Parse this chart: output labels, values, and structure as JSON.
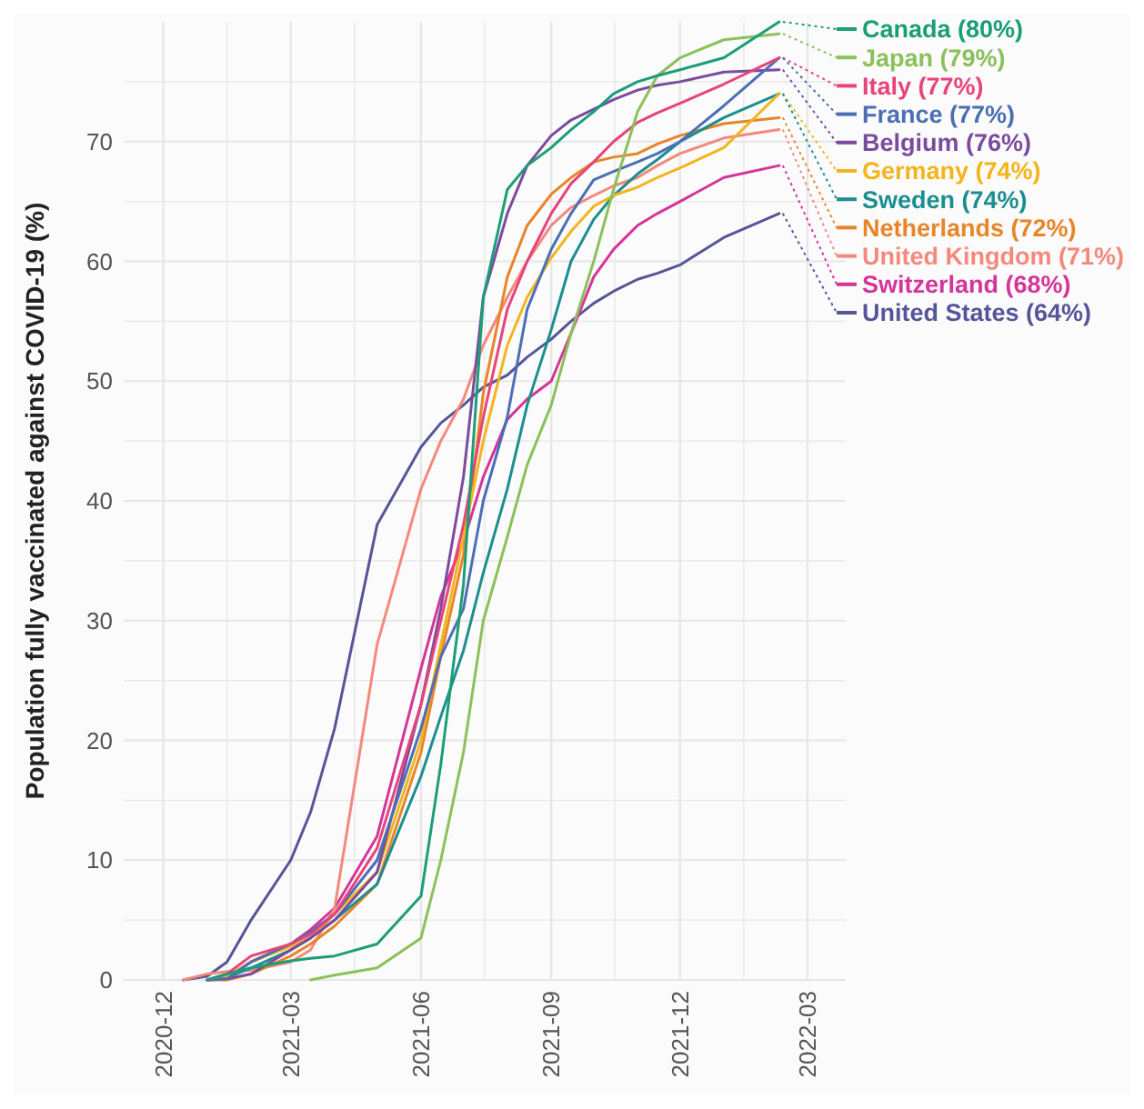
{
  "chart_data": {
    "type": "line",
    "ylabel": "Population fully vaccinated against COVID-19 (%)",
    "x": [
      "2020-12-15",
      "2021-01-01",
      "2021-01-15",
      "2021-02-01",
      "2021-03-01",
      "2021-03-15",
      "2021-04-01",
      "2021-05-01",
      "2021-06-01",
      "2021-06-15",
      "2021-07-01",
      "2021-07-15",
      "2021-08-01",
      "2021-08-15",
      "2021-09-01",
      "2021-09-15",
      "2021-10-01",
      "2021-10-15",
      "2021-11-01",
      "2021-11-15",
      "2021-12-01",
      "2022-01-01",
      "2022-02-09"
    ],
    "xlim": [
      "2020-11-03",
      "2022-03-28"
    ],
    "xticks": [
      "2020-12",
      {
        "value": "2021-01-15",
        "label": null
      },
      "2021-03",
      {
        "value": "2021-04-15",
        "label": null
      },
      "2021-06",
      {
        "value": "2021-07-16",
        "label": null
      },
      "2021-09",
      {
        "value": "2021-10-16",
        "label": null
      },
      "2021-12",
      {
        "value": "2022-01-15",
        "label": null
      },
      "2022-03"
    ],
    "ylim": [
      0,
      80
    ],
    "yticks": [
      0,
      {
        "value": 5,
        "label": null
      },
      10,
      {
        "value": 15,
        "label": null
      },
      20,
      {
        "value": 25,
        "label": null
      },
      30,
      {
        "value": 35,
        "label": null
      },
      40,
      {
        "value": 45,
        "label": null
      },
      50,
      {
        "value": 55,
        "label": null
      },
      60,
      {
        "value": 65,
        "label": null
      },
      70,
      {
        "value": 75,
        "label": null
      }
    ],
    "grid": true,
    "legend": "right",
    "marker": "none",
    "line_style": "solid",
    "series": [
      {
        "name": "Canada (80%)",
        "color": "#1b9e77",
        "values": [
          null,
          0,
          0.5,
          1,
          1.6,
          1.8,
          2,
          3,
          7,
          18,
          33,
          57,
          66,
          68,
          69.5,
          71,
          72.5,
          74,
          75,
          75.5,
          76,
          77,
          80
        ]
      },
      {
        "name": "Japan (79%)",
        "color": "#8cc05a",
        "values": [
          null,
          null,
          null,
          null,
          null,
          0,
          0.4,
          1,
          3.5,
          10,
          19,
          30,
          37,
          43,
          48,
          54,
          60,
          66,
          72.5,
          75.5,
          77,
          78.5,
          79
        ]
      },
      {
        "name": "Italy (77%)",
        "color": "#e7447a",
        "values": [
          null,
          0,
          0.5,
          2,
          3,
          3.8,
          5.5,
          11,
          23,
          30,
          38,
          47,
          56,
          60,
          64,
          66.5,
          68.3,
          70,
          71.6,
          72.4,
          73.2,
          74.8,
          77
        ]
      },
      {
        "name": "France (77%)",
        "color": "#4b6fb5",
        "values": [
          null,
          0,
          0.1,
          1.5,
          3,
          4,
          5.5,
          10,
          21,
          27,
          31,
          40,
          47,
          56,
          61,
          64,
          66.8,
          67.5,
          68.3,
          69,
          70,
          73,
          77
        ]
      },
      {
        "name": "Belgium (76%)",
        "color": "#7a4b9e",
        "values": [
          null,
          0,
          0.1,
          0.5,
          2.5,
          3.5,
          5,
          9,
          23,
          31,
          42,
          57,
          64,
          68,
          70.5,
          71.8,
          72.7,
          73.5,
          74.3,
          74.7,
          75,
          75.8,
          76
        ]
      },
      {
        "name": "Germany (74%)",
        "color": "#f2b51d",
        "values": [
          null,
          0,
          0.3,
          1.5,
          2.8,
          3.5,
          5.5,
          9,
          20,
          28,
          37,
          45,
          53,
          57,
          60.3,
          62.5,
          64.6,
          65.5,
          66.2,
          67,
          67.8,
          69.5,
          74
        ]
      },
      {
        "name": "Sweden (74%)",
        "color": "#1c8e8f",
        "values": [
          null,
          0,
          0.2,
          1,
          2.5,
          3.5,
          5,
          8,
          17,
          22,
          27.5,
          34,
          41,
          48,
          54.3,
          60,
          63.5,
          65.5,
          67.3,
          68.5,
          70,
          72,
          74
        ]
      },
      {
        "name": "Netherlands (72%)",
        "color": "#e8852a",
        "values": [
          null,
          0,
          0,
          0.5,
          2,
          3,
          4.5,
          8,
          19,
          27,
          35.5,
          49,
          58.7,
          63,
          65.6,
          67,
          68.3,
          68.7,
          69,
          69.8,
          70.5,
          71.5,
          72
        ]
      },
      {
        "name": "United Kingdom (71%)",
        "color": "#f4897b",
        "values": [
          0,
          0.5,
          0.7,
          0.8,
          1.5,
          2.5,
          6,
          28,
          41,
          45,
          48.5,
          53,
          57,
          60,
          63,
          64.5,
          65.5,
          66.3,
          67,
          68,
          69,
          70.3,
          71
        ]
      },
      {
        "name": "Switzerland (68%)",
        "color": "#d4359a",
        "values": [
          null,
          0,
          0.3,
          1.5,
          3,
          4.2,
          6,
          12,
          26,
          32,
          36.6,
          42,
          46.8,
          48.5,
          50,
          54,
          58.7,
          61,
          63,
          64,
          65,
          67,
          68
        ]
      },
      {
        "name": "United States (64%)",
        "color": "#555599",
        "values": [
          0,
          0.3,
          1.5,
          5,
          10,
          14,
          21,
          38,
          44.5,
          46.5,
          48,
          49.5,
          50.5,
          52,
          53.5,
          55,
          56.5,
          57.5,
          58.5,
          59,
          59.7,
          62,
          64
        ]
      }
    ]
  }
}
